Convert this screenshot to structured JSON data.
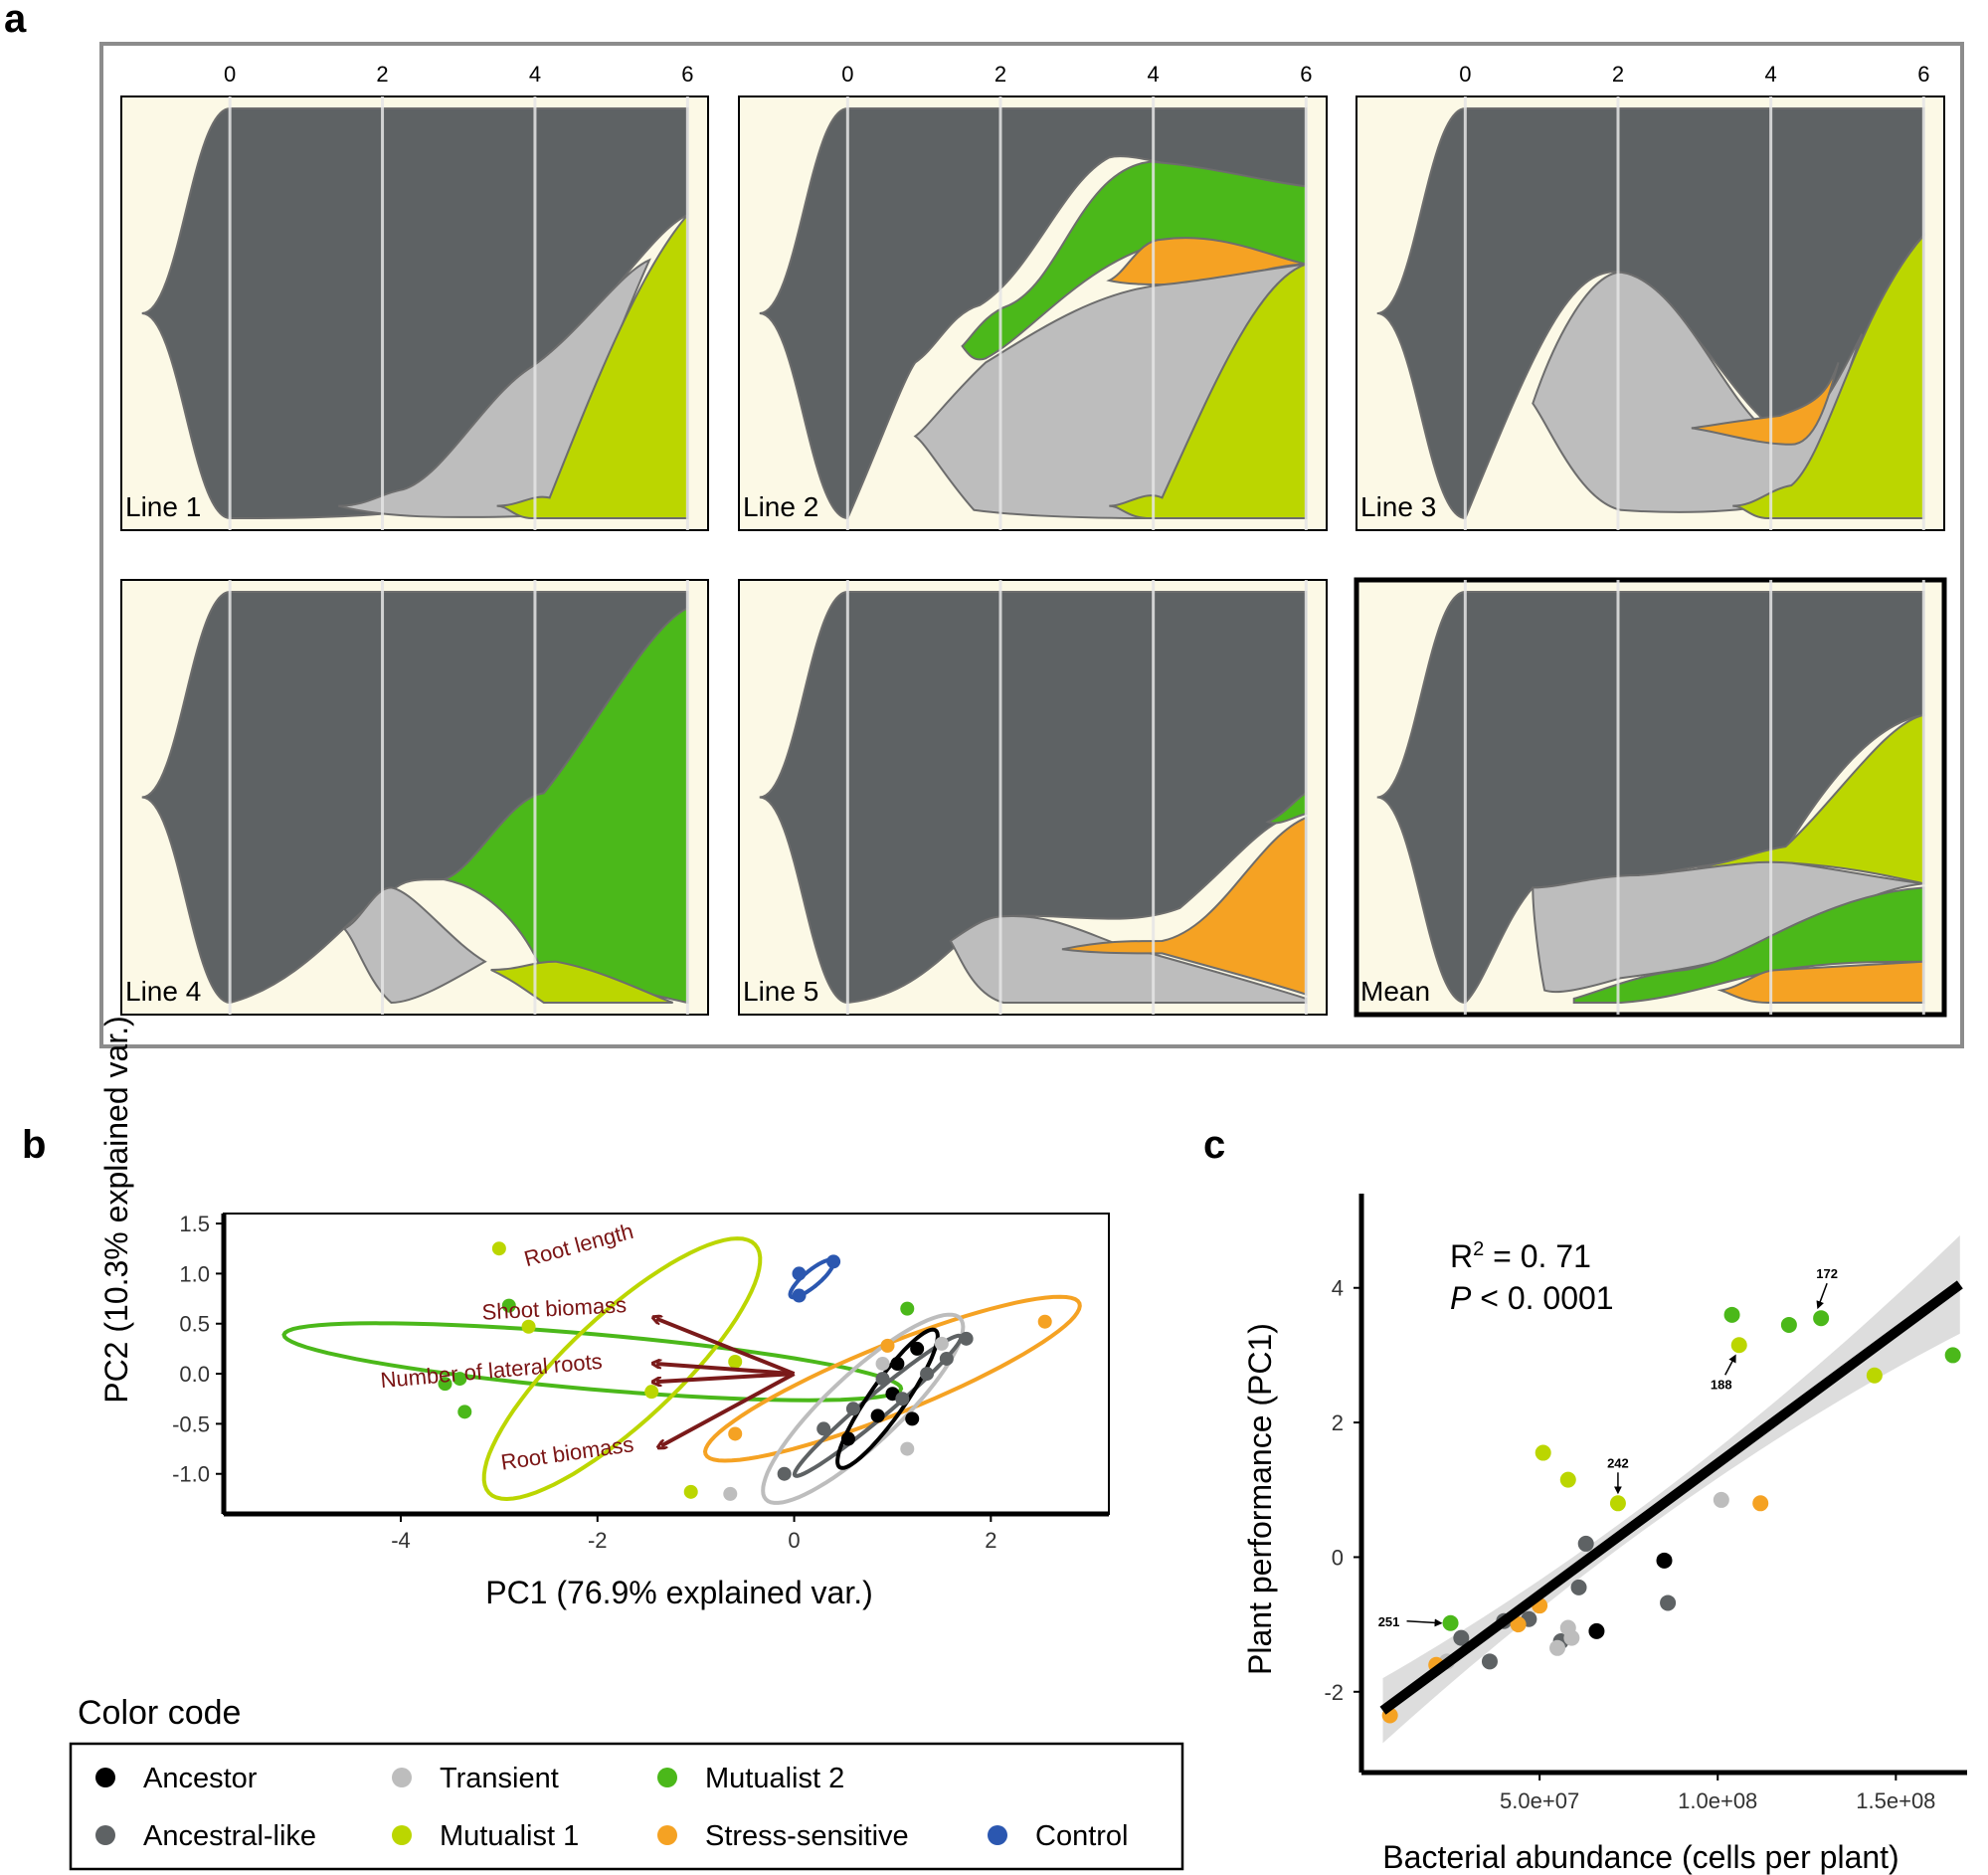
{
  "panel_labels": {
    "a": "a",
    "b": "b",
    "c": "c"
  },
  "colors": {
    "ancestor": "#000000",
    "ancestral_like": "#5e6264",
    "transient": "#bdbdbd",
    "mutualist1": "#bbd600",
    "mutualist2": "#4bb81a",
    "stress_sensitive": "#f5a223",
    "control": "#2b57b0",
    "panel_bg": "#fcf9e6",
    "arrow": "#7a1a1a"
  },
  "chart_data": [
    {
      "type": "area",
      "title": "",
      "description_kind": "fish-plot of genotype frequencies over cycles",
      "x_ticks": [
        "0",
        "2",
        "4",
        "6"
      ],
      "panels": [
        {
          "name": "Line 1",
          "highlighted": false
        },
        {
          "name": "Line 2",
          "highlighted": false
        },
        {
          "name": "Line 3",
          "highlighted": false
        },
        {
          "name": "Line 4",
          "highlighted": false
        },
        {
          "name": "Line 5",
          "highlighted": false
        },
        {
          "name": "Mean",
          "highlighted": true
        }
      ]
    },
    {
      "type": "scatter",
      "xlabel": "PC1 (76.9% explained var.)",
      "ylabel": "PC2 (10.3% explained var.)",
      "xlim": [
        -5.8,
        3.2
      ],
      "ylim": [
        -1.4,
        1.6
      ],
      "x_ticks": [
        -4,
        -2,
        0,
        2
      ],
      "y_ticks": [
        1.5,
        1.0,
        0.5,
        0.0,
        -0.5,
        -1.0
      ],
      "loadings": [
        {
          "label": "Root length",
          "x": -1.4,
          "y": 0.55
        },
        {
          "label": "Shoot biomass",
          "x": -1.4,
          "y": 0.1
        },
        {
          "label": "Number of lateral roots",
          "x": -1.4,
          "y": -0.08
        },
        {
          "label": "Root biomass",
          "x": -1.35,
          "y": -0.72
        }
      ],
      "series": [
        {
          "name": "Ancestor",
          "color_key": "ancestor",
          "points": [
            [
              0.55,
              -0.65
            ],
            [
              0.85,
              -0.42
            ],
            [
              1.0,
              -0.2
            ],
            [
              1.05,
              0.1
            ],
            [
              1.2,
              -0.45
            ],
            [
              1.25,
              0.25
            ]
          ]
        },
        {
          "name": "Ancestral-like",
          "color_key": "ancestral_like",
          "points": [
            [
              -0.1,
              -1.0
            ],
            [
              0.3,
              -0.55
            ],
            [
              0.6,
              -0.35
            ],
            [
              0.9,
              -0.05
            ],
            [
              1.1,
              -0.25
            ],
            [
              1.35,
              0.0
            ],
            [
              1.55,
              0.15
            ],
            [
              1.75,
              0.35
            ]
          ]
        },
        {
          "name": "Transient",
          "color_key": "transient",
          "points": [
            [
              -0.65,
              -1.2
            ],
            [
              0.9,
              0.1
            ],
            [
              1.15,
              -0.75
            ],
            [
              1.5,
              0.3
            ]
          ]
        },
        {
          "name": "Mutualist 1",
          "color_key": "mutualist1",
          "points": [
            [
              -3.0,
              1.25
            ],
            [
              -2.7,
              0.47
            ],
            [
              -1.45,
              -0.18
            ],
            [
              -0.6,
              0.12
            ],
            [
              -1.05,
              -1.18
            ]
          ]
        },
        {
          "name": "Mutualist 2",
          "color_key": "mutualist2",
          "points": [
            [
              -3.55,
              -0.1
            ],
            [
              -3.4,
              -0.05
            ],
            [
              -3.35,
              -0.38
            ],
            [
              -2.9,
              0.68
            ],
            [
              1.15,
              0.65
            ]
          ]
        },
        {
          "name": "Stress-sensitive",
          "color_key": "stress_sensitive",
          "points": [
            [
              -0.6,
              -0.6
            ],
            [
              0.95,
              0.28
            ],
            [
              2.55,
              0.52
            ]
          ]
        },
        {
          "name": "Control",
          "color_key": "control",
          "points": [
            [
              0.05,
              1.0
            ],
            [
              0.05,
              0.78
            ],
            [
              0.4,
              1.12
            ]
          ]
        }
      ]
    },
    {
      "type": "scatter",
      "xlabel": "Bacterial abundance (cells per plant)",
      "ylabel": "Plant performance (PC1)",
      "xlim": [
        0,
        170000000
      ],
      "ylim": [
        -3.2,
        5.4
      ],
      "x_ticks": [
        {
          "v": 50000000,
          "label": "5.0e+07"
        },
        {
          "v": 100000000,
          "label": "1.0e+08"
        },
        {
          "v": 150000000,
          "label": "1.5e+08"
        }
      ],
      "y_ticks": [
        4,
        2,
        0,
        -2
      ],
      "stats": {
        "r2_label": "R",
        "r2_sup": "2",
        "r2_value": " = 0. 71",
        "p_label": "P",
        "p_value": " <  0. 0001"
      },
      "fit_line": {
        "x0": 6000000,
        "y0": -2.28,
        "x1": 168000000,
        "y1": 4.05
      },
      "point_labels": [
        {
          "text": "172",
          "x": 129000000,
          "y": 3.55
        },
        {
          "text": "188",
          "x": 106000000,
          "y": 3.15
        },
        {
          "text": "242",
          "x": 72000000,
          "y": 0.8
        },
        {
          "text": "251",
          "x": 25000000,
          "y": -0.98
        }
      ],
      "series": [
        {
          "name": "Ancestor",
          "color_key": "ancestor",
          "points": [
            [
              85000000,
              -0.05
            ],
            [
              66000000,
              -1.1
            ]
          ]
        },
        {
          "name": "Ancestral-like",
          "color_key": "ancestral_like",
          "points": [
            [
              28000000,
              -1.2
            ],
            [
              36000000,
              -1.55
            ],
            [
              40000000,
              -0.95
            ],
            [
              47000000,
              -0.92
            ],
            [
              56000000,
              -1.25
            ],
            [
              61000000,
              -0.45
            ],
            [
              63000000,
              0.2
            ],
            [
              86000000,
              -0.68
            ]
          ]
        },
        {
          "name": "Transient",
          "color_key": "transient",
          "points": [
            [
              24000000,
              -1.55
            ],
            [
              55000000,
              -1.35
            ],
            [
              58000000,
              -1.05
            ],
            [
              101000000,
              0.85
            ],
            [
              59000000,
              -1.2
            ]
          ]
        },
        {
          "name": "Mutualist 1",
          "color_key": "mutualist1",
          "points": [
            [
              51000000,
              1.55
            ],
            [
              58000000,
              1.15
            ],
            [
              72000000,
              0.8
            ],
            [
              106000000,
              3.15
            ],
            [
              144000000,
              2.7
            ]
          ]
        },
        {
          "name": "Mutualist 2",
          "color_key": "mutualist2",
          "points": [
            [
              25000000,
              -0.98
            ],
            [
              104000000,
              3.6
            ],
            [
              120000000,
              3.45
            ],
            [
              129000000,
              3.55
            ],
            [
              166000000,
              3.0
            ]
          ]
        },
        {
          "name": "Stress-sensitive",
          "color_key": "stress_sensitive",
          "points": [
            [
              8000000,
              -2.35
            ],
            [
              21000000,
              -1.6
            ],
            [
              44000000,
              -1.0
            ],
            [
              50000000,
              -0.72
            ],
            [
              112000000,
              0.8
            ]
          ]
        }
      ]
    }
  ],
  "legend": {
    "title": "Color code",
    "items": [
      {
        "label": "Ancestor",
        "color_key": "ancestor"
      },
      {
        "label": "Transient",
        "color_key": "transient"
      },
      {
        "label": "Mutualist 2",
        "color_key": "mutualist2"
      },
      {
        "label": "Ancestral-like",
        "color_key": "ancestral_like"
      },
      {
        "label": "Mutualist 1",
        "color_key": "mutualist1"
      },
      {
        "label": "Stress-sensitive",
        "color_key": "stress_sensitive"
      },
      {
        "label": "Control",
        "color_key": "control"
      }
    ]
  }
}
